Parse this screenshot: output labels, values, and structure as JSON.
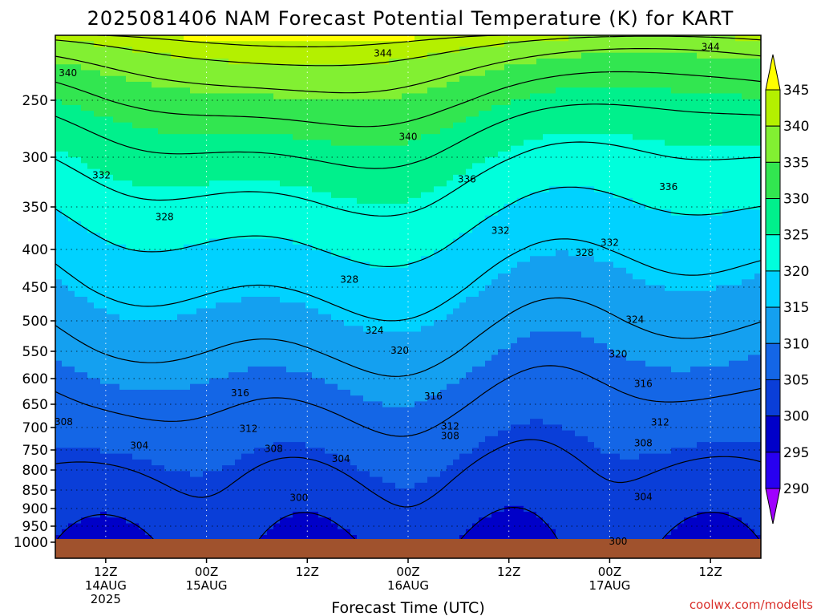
{
  "chart_data": {
    "type": "heatmap",
    "title": "2025081406 NAM Forecast Potential Temperature (K) for KART",
    "xlabel": "Forecast Time (UTC)",
    "ylabel": "",
    "credit": "coolwx.com/modelts",
    "x_ticks": [
      {
        "hour": 6,
        "lines": [
          "12Z",
          "14AUG",
          "2025"
        ]
      },
      {
        "hour": 18,
        "lines": [
          "00Z",
          "15AUG"
        ]
      },
      {
        "hour": 30,
        "lines": [
          "12Z"
        ]
      },
      {
        "hour": 42,
        "lines": [
          "00Z",
          "16AUG"
        ]
      },
      {
        "hour": 54,
        "lines": [
          "12Z"
        ]
      },
      {
        "hour": 66,
        "lines": [
          "00Z",
          "17AUG"
        ]
      },
      {
        "hour": 78,
        "lines": [
          "12Z"
        ]
      }
    ],
    "xlim": [
      0,
      84
    ],
    "y_ticks": [
      250,
      300,
      350,
      400,
      450,
      500,
      550,
      600,
      650,
      700,
      750,
      800,
      850,
      900,
      950,
      1000
    ],
    "ylim": [
      1010,
      200
    ],
    "colorbar": {
      "levels": [
        290,
        295,
        300,
        305,
        310,
        315,
        320,
        325,
        330,
        335,
        340,
        345
      ],
      "labels": [
        "345",
        "340",
        "335",
        "330",
        "325",
        "320",
        "315",
        "310",
        "305",
        "300",
        "295",
        "290"
      ],
      "colors": [
        "#a000ff",
        "#2800f0",
        "#0000c8",
        "#0a3ed8",
        "#1466e6",
        "#14a0f0",
        "#00d2ff",
        "#00ffdc",
        "#00f08c",
        "#32e650",
        "#82f032",
        "#b4f000",
        "#ffff00"
      ]
    },
    "ground_color": "#a0522d",
    "contour_labels": [
      {
        "hour": 1.5,
        "pres": 229,
        "text": "340"
      },
      {
        "hour": 39,
        "pres": 214,
        "text": "344"
      },
      {
        "hour": 78,
        "pres": 209,
        "text": "344"
      },
      {
        "hour": 5.5,
        "pres": 318,
        "text": "332"
      },
      {
        "hour": 42,
        "pres": 282,
        "text": "340"
      },
      {
        "hour": 49,
        "pres": 322,
        "text": "336"
      },
      {
        "hour": 73,
        "pres": 330,
        "text": "336"
      },
      {
        "hour": 13,
        "pres": 362,
        "text": "328"
      },
      {
        "hour": 53,
        "pres": 378,
        "text": "332"
      },
      {
        "hour": 66,
        "pres": 392,
        "text": "332"
      },
      {
        "hour": 63,
        "pres": 404,
        "text": "328"
      },
      {
        "hour": 35,
        "pres": 440,
        "text": "328"
      },
      {
        "hour": 38,
        "pres": 516,
        "text": "324"
      },
      {
        "hour": 69,
        "pres": 498,
        "text": "324"
      },
      {
        "hour": 41,
        "pres": 549,
        "text": "320"
      },
      {
        "hour": 67,
        "pres": 555,
        "text": "320"
      },
      {
        "hour": 22,
        "pres": 628,
        "text": "316"
      },
      {
        "hour": 45,
        "pres": 634,
        "text": "316"
      },
      {
        "hour": 70,
        "pres": 610,
        "text": "316"
      },
      {
        "hour": 1,
        "pres": 688,
        "text": "308"
      },
      {
        "hour": 23,
        "pres": 703,
        "text": "312"
      },
      {
        "hour": 47,
        "pres": 697,
        "text": "312"
      },
      {
        "hour": 72,
        "pres": 689,
        "text": "312"
      },
      {
        "hour": 47,
        "pres": 719,
        "text": "308"
      },
      {
        "hour": 26,
        "pres": 747,
        "text": "308"
      },
      {
        "hour": 70,
        "pres": 735,
        "text": "308"
      },
      {
        "hour": 10,
        "pres": 740,
        "text": "304"
      },
      {
        "hour": 34,
        "pres": 772,
        "text": "304"
      },
      {
        "hour": 70,
        "pres": 869,
        "text": "304"
      },
      {
        "hour": 29,
        "pres": 871,
        "text": "300"
      },
      {
        "hour": 67,
        "pres": 998,
        "text": "300"
      }
    ]
  }
}
